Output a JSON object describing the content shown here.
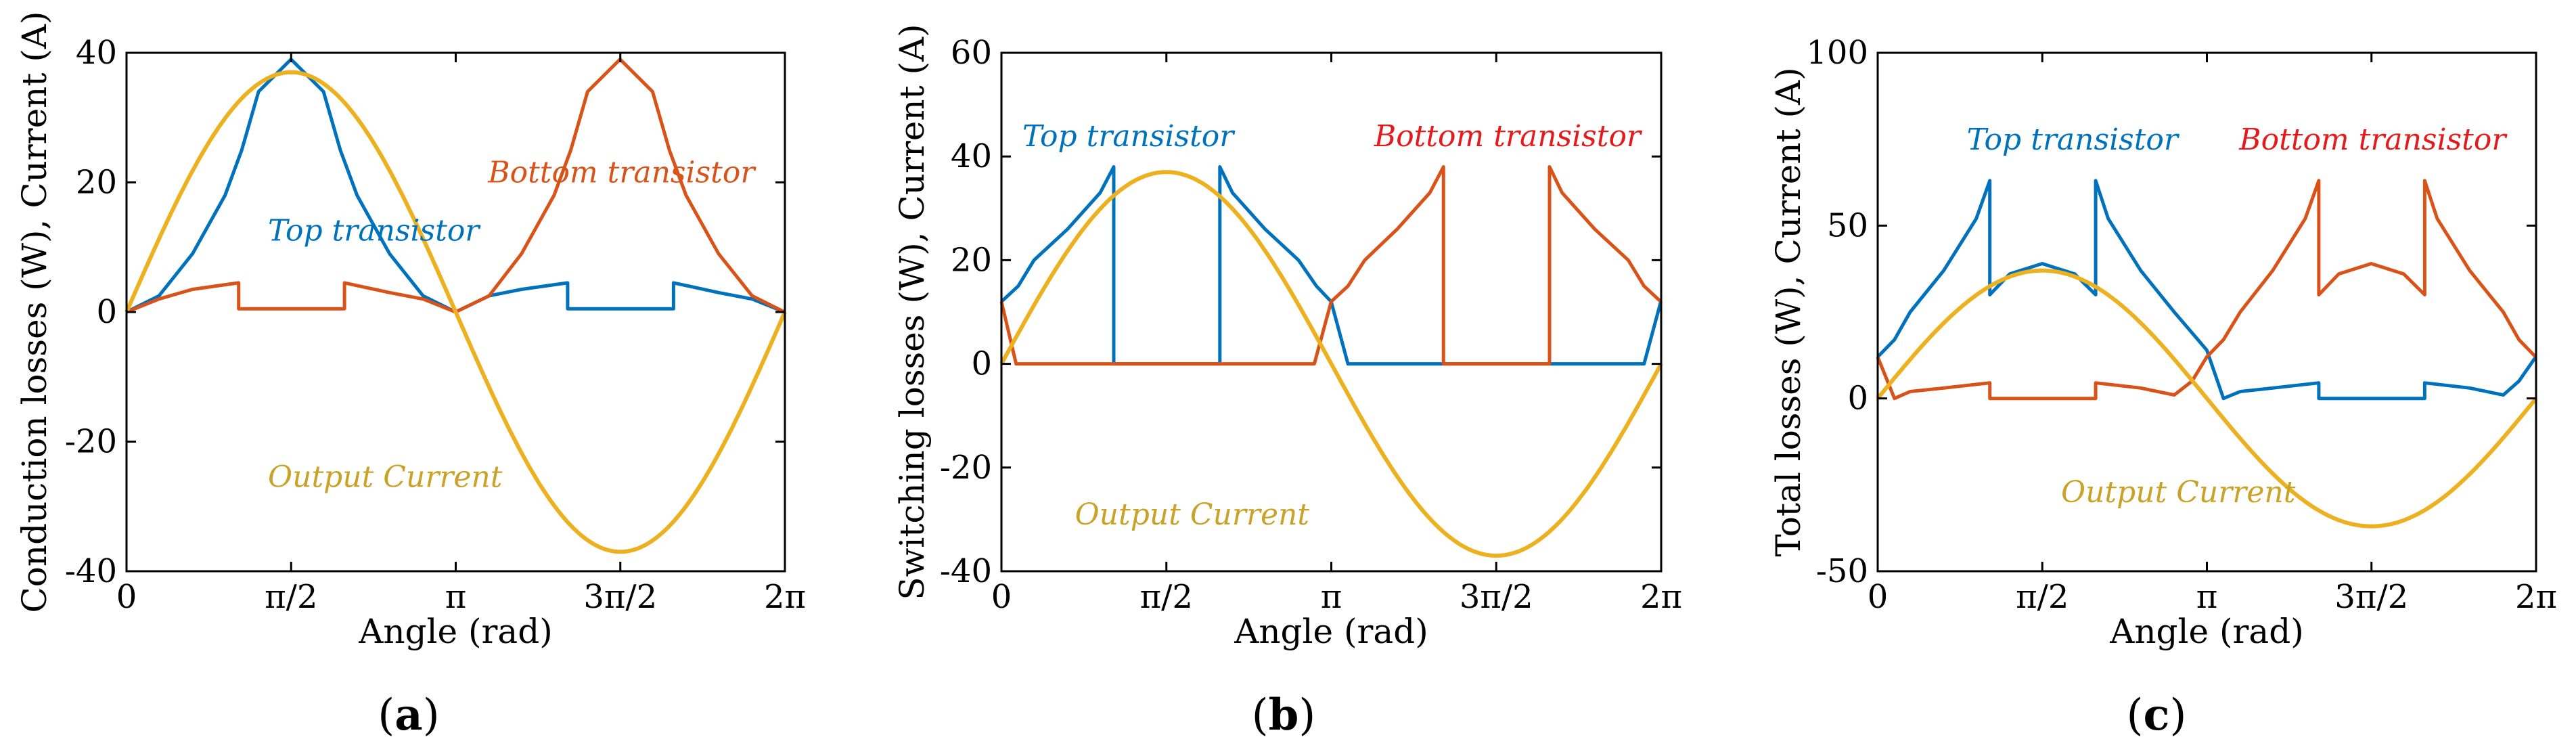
{
  "chart_data": [
    {
      "type": "line",
      "panel": "(a)",
      "panel_letter": "a",
      "title": "",
      "xlabel": "Angle (rad)",
      "ylabel": "Conduction losses (W), Current (A)",
      "xlim": [
        0,
        6.2832
      ],
      "ylim": [
        -40,
        40
      ],
      "xticks": [
        "0",
        "π/2",
        "π",
        "3π/2",
        "2π"
      ],
      "yticks": [
        "-40",
        "-20",
        "0",
        "20",
        "40"
      ],
      "ytick_values": [
        -40,
        -20,
        0,
        20,
        40
      ],
      "annotations": [
        {
          "text": "Top transistor",
          "color": "#0072BD",
          "x": 1.35,
          "y": 11
        },
        {
          "text": "Bottom transistor",
          "color": "#D95319",
          "x": 3.45,
          "y": 20
        },
        {
          "text": "Output Current",
          "color": "#C9A227",
          "x": 1.35,
          "y": -27
        }
      ],
      "series": [
        {
          "name": "Top transistor",
          "color": "#0072BD",
          "x": [
            0,
            0.31,
            0.63,
            0.94,
            1.1,
            1.26,
            1.57,
            1.88,
            2.04,
            2.2,
            2.51,
            2.83,
            3.14,
            3.46,
            3.77,
            4.21,
            4.21,
            5.22,
            5.22,
            5.65,
            5.97,
            6.28
          ],
          "y": [
            0,
            2.5,
            9,
            18,
            25,
            34,
            39,
            34,
            25,
            18,
            9,
            2.5,
            0,
            2.5,
            3.5,
            4.5,
            0.5,
            0.5,
            4.5,
            3,
            2,
            0
          ]
        },
        {
          "name": "Bottom transistor",
          "color": "#D95319",
          "x": [
            0,
            0.31,
            0.63,
            1.07,
            1.07,
            2.08,
            2.08,
            2.51,
            2.83,
            3.14,
            3.46,
            3.77,
            4.08,
            4.24,
            4.4,
            4.71,
            5.02,
            5.18,
            5.34,
            5.65,
            5.97,
            6.28
          ],
          "y": [
            0,
            2,
            3.5,
            4.5,
            0.5,
            0.5,
            4.5,
            3,
            2,
            0,
            2.5,
            9,
            18,
            25,
            34,
            39,
            34,
            25,
            18,
            9,
            2.5,
            0
          ]
        },
        {
          "name": "Output Current",
          "color": "#EDB120",
          "function": "sine",
          "amplitude": 37
        }
      ]
    },
    {
      "type": "line",
      "panel": "(b)",
      "panel_letter": "b",
      "title": "",
      "xlabel": "Angle (rad)",
      "ylabel": "Switching losses (W), Current (A)",
      "xlim": [
        0,
        6.2832
      ],
      "ylim": [
        -40,
        60
      ],
      "xticks": [
        "0",
        "π/2",
        "π",
        "3π/2",
        "2π"
      ],
      "yticks": [
        "-40",
        "-20",
        "0",
        "20",
        "40",
        "60"
      ],
      "ytick_values": [
        -40,
        -20,
        0,
        20,
        40,
        60
      ],
      "annotations": [
        {
          "text": "Top transistor",
          "color": "#0072BD",
          "x": 0.2,
          "y": 42
        },
        {
          "text": "Bottom transistor",
          "color": "#E41A1C",
          "x": 3.55,
          "y": 42
        },
        {
          "text": "Output Current",
          "color": "#C9A227",
          "x": 0.7,
          "y": -31
        }
      ],
      "series": [
        {
          "name": "Top transistor",
          "color": "#0072BD",
          "x": [
            0,
            0.16,
            0.31,
            0.63,
            0.94,
            1.07,
            1.07,
            2.08,
            2.08,
            2.2,
            2.51,
            2.83,
            3.0,
            3.14,
            3.3,
            3.3,
            6.12,
            6.28
          ],
          "y": [
            12,
            15,
            20,
            26,
            33,
            38,
            0,
            0,
            38,
            33,
            26,
            20,
            15,
            12,
            0,
            0,
            0,
            12
          ]
        },
        {
          "name": "Bottom transistor",
          "color": "#D95319",
          "x": [
            0,
            0.14,
            0.14,
            2.98,
            3.14,
            3.3,
            3.46,
            3.77,
            4.08,
            4.21,
            4.21,
            5.22,
            5.22,
            5.34,
            5.65,
            5.97,
            6.12,
            6.28
          ],
          "y": [
            12,
            0,
            0,
            0,
            12,
            15,
            20,
            26,
            33,
            38,
            0,
            0,
            38,
            33,
            26,
            20,
            15,
            12
          ]
        },
        {
          "name": "Output Current",
          "color": "#EDB120",
          "function": "sine",
          "amplitude": 37
        }
      ]
    },
    {
      "type": "line",
      "panel": "(c)",
      "panel_letter": "c",
      "title": "",
      "xlabel": "Angle (rad)",
      "ylabel": "Total losses (W), Current (A)",
      "xlim": [
        0,
        6.2832
      ],
      "ylim": [
        -50,
        100
      ],
      "xticks": [
        "0",
        "π/2",
        "π",
        "3π/2",
        "2π"
      ],
      "yticks": [
        "-50",
        "0",
        "50",
        "100"
      ],
      "ytick_values": [
        -50,
        0,
        50,
        100
      ],
      "annotations": [
        {
          "text": "Top transistor",
          "color": "#0072BD",
          "x": 0.85,
          "y": 72
        },
        {
          "text": "Bottom transistor",
          "color": "#E41A1C",
          "x": 3.45,
          "y": 72
        },
        {
          "text": "Output Current",
          "color": "#C9A227",
          "x": 1.75,
          "y": -30
        }
      ],
      "series": [
        {
          "name": "Top transistor",
          "color": "#0072BD",
          "x": [
            0,
            0.16,
            0.31,
            0.63,
            0.94,
            1.07,
            1.07,
            1.26,
            1.57,
            1.88,
            2.08,
            2.08,
            2.2,
            2.51,
            2.83,
            3.14,
            3.3,
            3.46,
            3.77,
            4.21,
            4.21,
            5.22,
            5.22,
            5.65,
            5.97,
            6.12,
            6.28
          ],
          "y": [
            12,
            17,
            25,
            37,
            52,
            63,
            30,
            36,
            39,
            36,
            30,
            63,
            52,
            37,
            25,
            14,
            0,
            2,
            3,
            4.5,
            0,
            0,
            4.5,
            3,
            1,
            5,
            12
          ]
        },
        {
          "name": "Bottom transistor",
          "color": "#D95319",
          "x": [
            0,
            0.16,
            0.31,
            0.63,
            1.07,
            1.07,
            2.08,
            2.08,
            2.51,
            2.83,
            3.0,
            3.14,
            3.3,
            3.46,
            3.77,
            4.08,
            4.21,
            4.21,
            4.4,
            4.71,
            5.02,
            5.22,
            5.22,
            5.34,
            5.65,
            5.97,
            6.12,
            6.28
          ],
          "y": [
            12,
            0,
            2,
            3,
            4.5,
            0,
            0,
            4.5,
            3,
            1,
            5,
            12,
            17,
            25,
            37,
            52,
            63,
            30,
            36,
            39,
            36,
            30,
            63,
            52,
            37,
            25,
            17,
            12
          ]
        },
        {
          "name": "Output Current",
          "color": "#EDB120",
          "function": "sine",
          "amplitude": 37
        }
      ]
    }
  ]
}
